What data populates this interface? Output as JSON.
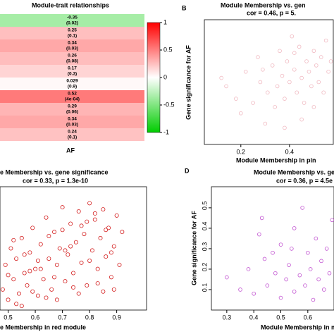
{
  "chart_data": [
    {
      "type": "heatmap",
      "title": "Module-trait relationships",
      "x_label": "AF",
      "values": [
        -0.35,
        0.25,
        0.34,
        0.26,
        0.17,
        0.029,
        0.52,
        0.29,
        0.34,
        0.24
      ],
      "p_labels": [
        "(0.02)",
        "(0.1)",
        "(0.03)",
        "(0.08)",
        "(0.3)",
        "(0.9)",
        "(4e-04)",
        "(0.06)",
        "(0.03)",
        "(0.1)"
      ],
      "colorbar": {
        "lim": [
          -1,
          1
        ],
        "ticks": [
          1,
          0.5,
          0,
          -0.5,
          -1
        ]
      }
    },
    {
      "type": "scatter",
      "panel_label": "B",
      "title": "Module Membership vs. gen",
      "subtitle": "cor = 0.46, p = 5.",
      "x_label": "Module Membership in pin",
      "y_label": "Gene significance for AF",
      "color": "#f0b8c0",
      "xlim": [
        0.05,
        0.58
      ],
      "ylim": [
        0,
        0.6
      ],
      "xticks": [
        0.2,
        0.4
      ],
      "x": [
        0.12,
        0.14,
        0.18,
        0.2,
        0.22,
        0.25,
        0.27,
        0.28,
        0.3,
        0.31,
        0.33,
        0.34,
        0.35,
        0.36,
        0.37,
        0.38,
        0.39,
        0.4,
        0.41,
        0.42,
        0.43,
        0.44,
        0.45,
        0.46,
        0.47,
        0.48,
        0.49,
        0.5,
        0.51,
        0.52,
        0.53,
        0.54,
        0.55,
        0.56,
        0.57,
        0.45,
        0.38,
        0.5,
        0.29,
        0.42
      ],
      "values": [
        0.32,
        0.28,
        0.22,
        0.15,
        0.35,
        0.2,
        0.42,
        0.3,
        0.1,
        0.25,
        0.38,
        0.18,
        0.28,
        0.45,
        0.33,
        0.22,
        0.4,
        0.3,
        0.52,
        0.36,
        0.25,
        0.47,
        0.32,
        0.2,
        0.4,
        0.35,
        0.28,
        0.45,
        0.38,
        0.3,
        0.42,
        0.25,
        0.5,
        0.35,
        0.4,
        0.12,
        0.08,
        0.18,
        0.36,
        0.44
      ]
    },
    {
      "type": "scatter",
      "title": "e Membership vs. gene significance",
      "subtitle": "cor = 0.33, p = 1.3e-10",
      "x_label": "e Membership in red module",
      "color": "#d42020",
      "xlim": [
        0.47,
        1.01
      ],
      "ylim": [
        0,
        0.6
      ],
      "xticks": [
        0.5,
        0.6,
        0.7,
        0.8,
        0.9
      ],
      "x": [
        0.48,
        0.49,
        0.5,
        0.51,
        0.52,
        0.53,
        0.54,
        0.55,
        0.56,
        0.57,
        0.58,
        0.59,
        0.6,
        0.61,
        0.62,
        0.63,
        0.64,
        0.65,
        0.66,
        0.67,
        0.68,
        0.69,
        0.7,
        0.71,
        0.72,
        0.73,
        0.74,
        0.75,
        0.76,
        0.77,
        0.78,
        0.79,
        0.8,
        0.81,
        0.82,
        0.83,
        0.84,
        0.85,
        0.86,
        0.87,
        0.88,
        0.89,
        0.9,
        0.91,
        0.92,
        0.5,
        0.53,
        0.56,
        0.59,
        0.62,
        0.65,
        0.68,
        0.71,
        0.74,
        0.77,
        0.8,
        0.83,
        0.86,
        0.89,
        0.52,
        0.58,
        0.64,
        0.7,
        0.76,
        0.82,
        0.88,
        0.55,
        0.61,
        0.67,
        0.73,
        0.79,
        0.85
      ],
      "values": [
        0.1,
        0.22,
        0.05,
        0.3,
        0.15,
        0.25,
        0.08,
        0.35,
        0.18,
        0.12,
        0.28,
        0.4,
        0.2,
        0.07,
        0.32,
        0.15,
        0.45,
        0.25,
        0.1,
        0.38,
        0.22,
        0.3,
        0.5,
        0.14,
        0.27,
        0.42,
        0.18,
        0.33,
        0.48,
        0.23,
        0.37,
        0.12,
        0.52,
        0.29,
        0.44,
        0.2,
        0.35,
        0.49,
        0.26,
        0.4,
        0.16,
        0.31,
        0.46,
        0.22,
        0.38,
        0.17,
        0.03,
        0.27,
        0.09,
        0.2,
        0.36,
        0.05,
        0.29,
        0.11,
        0.41,
        0.24,
        0.13,
        0.39,
        0.1,
        0.34,
        0.19,
        0.06,
        0.39,
        0.08,
        0.47,
        0.28,
        0.02,
        0.24,
        0.16,
        0.31,
        0.43,
        0.09
      ],
      "point_size": 2.6
    },
    {
      "type": "scatter",
      "panel_label": "D",
      "title": "Module Membership vs. gene",
      "subtitle": "cor = 0.36, p = 4.5e",
      "x_label": "Module Membership in ma",
      "y_label": "Gene significance for AF",
      "color": "#c050d0",
      "xlim": [
        0.243,
        0.697
      ],
      "ylim": [
        0,
        0.603
      ],
      "xticks": [
        0.3,
        0.4,
        0.5,
        0.6
      ],
      "yticks": [
        0.1,
        0.2,
        0.3,
        0.4,
        0.5
      ],
      "x": [
        0.3,
        0.35,
        0.38,
        0.4,
        0.42,
        0.43,
        0.44,
        0.45,
        0.47,
        0.48,
        0.5,
        0.5,
        0.52,
        0.53,
        0.55,
        0.55,
        0.57,
        0.58,
        0.59,
        0.6,
        0.61,
        0.62,
        0.63,
        0.64,
        0.65,
        0.66,
        0.67,
        0.68,
        0.69,
        0.54
      ],
      "values": [
        0.16,
        0.1,
        0.2,
        0.08,
        0.37,
        0.45,
        0.25,
        0.12,
        0.28,
        0.18,
        0.06,
        0.32,
        0.15,
        0.22,
        0.09,
        0.4,
        0.17,
        0.5,
        0.12,
        0.28,
        0.2,
        0.05,
        0.35,
        0.15,
        0.24,
        0.1,
        0.3,
        0.18,
        0.44,
        0.3
      ]
    }
  ]
}
